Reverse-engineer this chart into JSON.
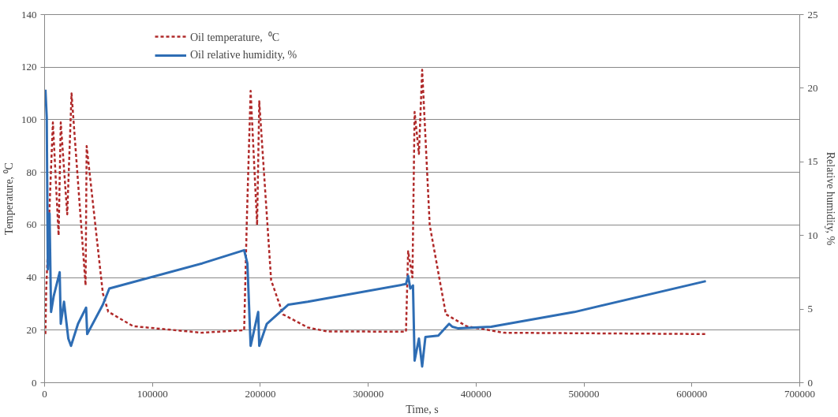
{
  "chart_data": {
    "type": "line",
    "xlabel": "Time, s",
    "ylabel": "Temperature, ⁰C",
    "y2label": "Relative humidity, %",
    "xlim": [
      0,
      700000
    ],
    "xticks": [
      0,
      100000,
      200000,
      300000,
      400000,
      500000,
      600000,
      700000
    ],
    "ylim": [
      0,
      140
    ],
    "yticks": [
      0,
      20,
      40,
      60,
      80,
      100,
      120,
      140
    ],
    "y2lim": [
      0,
      25
    ],
    "y2ticks": [
      0,
      5,
      10,
      15,
      20,
      25
    ],
    "grid": "y",
    "legend": "top left",
    "marker": "none",
    "series": [
      {
        "name": "Oil temperature,  ⁰C",
        "color": "#b02a2a",
        "line_style": "dashed",
        "axis": "y",
        "x": [
          800,
          1500,
          7700,
          13000,
          15000,
          21000,
          25000,
          38000,
          39000,
          54000,
          59000,
          82000,
          146000,
          185000,
          187500,
          191000,
          197000,
          199000,
          210000,
          221000,
          244000,
          262000,
          335000,
          337000,
          341000,
          343000,
          347000,
          350000,
          357000,
          372000,
          391000,
          426000,
          613000
        ],
        "values": [
          18.5,
          35,
          99,
          56,
          99,
          64,
          110,
          37,
          90,
          34,
          27,
          21.5,
          19,
          20,
          62,
          111,
          60,
          107,
          39,
          26,
          21,
          19.5,
          19.4,
          50,
          40,
          103,
          87,
          119,
          60,
          26,
          21.5,
          19,
          18.5
        ]
      },
      {
        "name": "Oil relative humidity, %",
        "color": "#2e6db4",
        "line_style": "solid",
        "axis": "y2",
        "x": [
          800,
          2000,
          3000,
          4600,
          6000,
          8500,
          14000,
          15000,
          18000,
          22000,
          24500,
          31000,
          38500,
          39500,
          54000,
          60000,
          146000,
          185000,
          188000,
          191000,
          198000,
          199000,
          206000,
          226000,
          244000,
          335000,
          337000,
          339000,
          341500,
          343000,
          347000,
          350000,
          353000,
          365000,
          375000,
          378000,
          383000,
          414000,
          491000,
          613000
        ],
        "values": [
          19.9,
          18,
          7.7,
          11.5,
          4.8,
          5.9,
          7.5,
          4,
          5.5,
          3,
          2.5,
          4,
          5.1,
          3.3,
          5.3,
          6.4,
          8.1,
          9,
          8.1,
          2.5,
          4.8,
          2.5,
          4,
          5.3,
          5.5,
          6.7,
          7.25,
          6.4,
          6.6,
          1.5,
          3,
          1.1,
          3.1,
          3.2,
          4,
          3.8,
          3.7,
          3.8,
          4.8,
          6.9
        ]
      }
    ]
  }
}
